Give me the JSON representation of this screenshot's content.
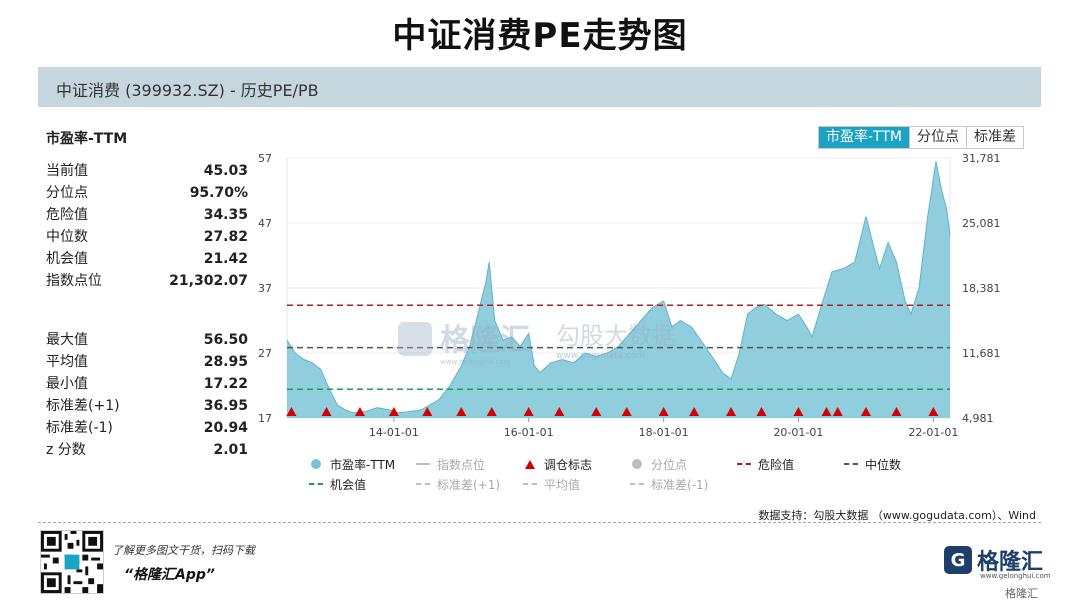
{
  "page_title": "中证消费PE走势图",
  "header": {
    "subtitle": "中证消费 (399932.SZ) - 历史PE/PB"
  },
  "stats": {
    "title": "市盈率-TTM",
    "group1": [
      {
        "label": "当前值",
        "value": "45.03"
      },
      {
        "label": "分位点",
        "value": "95.70%"
      },
      {
        "label": "危险值",
        "value": "34.35"
      },
      {
        "label": "中位数",
        "value": "27.82"
      },
      {
        "label": "机会值",
        "value": "21.42"
      },
      {
        "label": "指数点位",
        "value": "21,302.07"
      }
    ],
    "group2": [
      {
        "label": "最大值",
        "value": "56.50"
      },
      {
        "label": "平均值",
        "value": "28.95"
      },
      {
        "label": "最小值",
        "value": "17.22"
      },
      {
        "label": "标准差(+1)",
        "value": "36.95"
      },
      {
        "label": "标准差(-1)",
        "value": "20.94"
      },
      {
        "label": "z 分数",
        "value": "2.01"
      }
    ]
  },
  "tabs": [
    "市盈率-TTM",
    "分位点",
    "标准差"
  ],
  "active_tab": 0,
  "legend": [
    [
      {
        "label": "市盈率-TTM",
        "sym": "dot",
        "color": "#74c3d6",
        "muted": false
      },
      {
        "label": "指数点位",
        "sym": "line",
        "color": "#c0c0c0",
        "muted": true
      },
      {
        "label": "调仓标志",
        "sym": "tri",
        "color": "#d40000",
        "muted": false
      },
      {
        "label": "分位点",
        "sym": "dot",
        "color": "#bdbdbd",
        "muted": true
      },
      {
        "label": "危险值",
        "sym": "dash",
        "color": "#b22222",
        "muted": false
      },
      {
        "label": "中位数",
        "sym": "dash",
        "color": "#555555",
        "muted": false
      }
    ],
    [
      {
        "label": "机会值",
        "sym": "dash",
        "color": "#1e9e4a",
        "muted": false
      },
      {
        "label": "标准差(+1)",
        "sym": "dash",
        "color": "#c0c0c0",
        "muted": true
      },
      {
        "label": "平均值",
        "sym": "dash",
        "color": "#c0c0c0",
        "muted": true
      },
      {
        "label": "标准差(-1)",
        "sym": "dash",
        "color": "#c0c0c0",
        "muted": true
      }
    ]
  ],
  "watermark": {
    "brand": "格隆汇",
    "sub": "www.gelonghui.com",
    "partner": "勾股大数据",
    "partner_sub": "www.gogudata.com"
  },
  "source_text": "数据支持：勾股大数据 （www.gogudata.com）、Wind",
  "footer": {
    "line1": "了解更多图文干货，扫码下载",
    "line2": "“格隆汇App”",
    "brand": "格隆汇",
    "brand_sub": "www.gelonghui.com",
    "corner": "格隆汇"
  },
  "colors": {
    "area": "#7cc6d8",
    "danger": "#b22222",
    "median": "#555555",
    "opportunity": "#1e9e4a",
    "accent": "#1ba3c6",
    "marker": "#d40000"
  },
  "chart_data": {
    "type": "area",
    "x_range": [
      "2012-06-01",
      "2022-04-01"
    ],
    "x_ticks": [
      "14-01-01",
      "16-01-01",
      "18-01-01",
      "20-01-01",
      "22-01-01"
    ],
    "y_left": {
      "ticks": [
        17,
        27,
        37,
        47,
        57
      ],
      "range": [
        17,
        57
      ]
    },
    "y_right": {
      "ticks": [
        "4,981",
        "11,681",
        "18,381",
        "25,081",
        "31,781"
      ],
      "range": [
        4981,
        31781
      ]
    },
    "series": [
      {
        "name": "市盈率-TTM",
        "points": [
          [
            "2012-06-01",
            29.0
          ],
          [
            "2012-07-15",
            27.0
          ],
          [
            "2012-09-01",
            26.0
          ],
          [
            "2012-10-15",
            25.5
          ],
          [
            "2012-12-01",
            24.5
          ],
          [
            "2013-01-15",
            21.5
          ],
          [
            "2013-03-01",
            19.0
          ],
          [
            "2013-04-15",
            18.2
          ],
          [
            "2013-06-01",
            17.8
          ],
          [
            "2013-08-01",
            18.0
          ],
          [
            "2013-10-01",
            18.6
          ],
          [
            "2013-12-01",
            18.3
          ],
          [
            "2014-02-01",
            17.8
          ],
          [
            "2014-04-01",
            18.0
          ],
          [
            "2014-06-01",
            18.3
          ],
          [
            "2014-09-01",
            19.8
          ],
          [
            "2014-11-01",
            22.0
          ],
          [
            "2015-01-01",
            25.0
          ],
          [
            "2015-02-15",
            28.0
          ],
          [
            "2015-04-01",
            33.0
          ],
          [
            "2015-05-15",
            38.0
          ],
          [
            "2015-06-01",
            41.0
          ],
          [
            "2015-07-01",
            32.0
          ],
          [
            "2015-08-15",
            29.0
          ],
          [
            "2015-10-01",
            29.5
          ],
          [
            "2015-11-15",
            28.0
          ],
          [
            "2016-01-01",
            30.0
          ],
          [
            "2016-02-01",
            25.0
          ],
          [
            "2016-03-01",
            24.0
          ],
          [
            "2016-05-01",
            25.5
          ],
          [
            "2016-07-01",
            26.0
          ],
          [
            "2016-09-01",
            25.5
          ],
          [
            "2016-11-01",
            27.0
          ],
          [
            "2017-01-01",
            26.5
          ],
          [
            "2017-03-01",
            27.0
          ],
          [
            "2017-05-01",
            28.0
          ],
          [
            "2017-07-01",
            30.0
          ],
          [
            "2017-09-01",
            32.0
          ],
          [
            "2017-11-01",
            34.0
          ],
          [
            "2018-01-01",
            35.0
          ],
          [
            "2018-02-15",
            31.0
          ],
          [
            "2018-04-01",
            32.0
          ],
          [
            "2018-06-01",
            31.0
          ],
          [
            "2018-08-01",
            28.5
          ],
          [
            "2018-10-01",
            26.0
          ],
          [
            "2018-11-15",
            24.0
          ],
          [
            "2019-01-01",
            23.0
          ],
          [
            "2019-02-15",
            27.0
          ],
          [
            "2019-04-01",
            33.0
          ],
          [
            "2019-05-15",
            34.0
          ],
          [
            "2019-07-01",
            34.5
          ],
          [
            "2019-09-01",
            33.0
          ],
          [
            "2019-11-01",
            32.0
          ],
          [
            "2020-01-01",
            33.0
          ],
          [
            "2020-02-15",
            31.0
          ],
          [
            "2020-03-15",
            29.5
          ],
          [
            "2020-05-01",
            34.0
          ],
          [
            "2020-07-01",
            39.5
          ],
          [
            "2020-09-01",
            40.0
          ],
          [
            "2020-11-01",
            41.0
          ],
          [
            "2021-01-01",
            48.0
          ],
          [
            "2021-02-15",
            43.0
          ],
          [
            "2021-03-15",
            40.0
          ],
          [
            "2021-05-01",
            44.0
          ],
          [
            "2021-06-15",
            41.0
          ],
          [
            "2021-08-01",
            35.0
          ],
          [
            "2021-09-01",
            33.0
          ],
          [
            "2021-10-15",
            37.0
          ],
          [
            "2021-12-01",
            48.0
          ],
          [
            "2022-01-15",
            56.5
          ],
          [
            "2022-02-15",
            52.0
          ],
          [
            "2022-03-15",
            49.0
          ],
          [
            "2022-04-01",
            45.03
          ]
        ]
      }
    ],
    "reference_lines": [
      {
        "name": "危险值",
        "value": 34.35
      },
      {
        "name": "中位数",
        "value": 27.82
      },
      {
        "name": "机会值",
        "value": 21.42
      }
    ],
    "rebalance_markers": [
      "2012-06-25",
      "2013-01-01",
      "2013-07-01",
      "2014-01-01",
      "2014-07-01",
      "2015-01-01",
      "2015-06-15",
      "2016-01-01",
      "2016-06-15",
      "2017-01-01",
      "2017-06-15",
      "2018-01-01",
      "2018-06-15",
      "2019-01-01",
      "2019-06-15",
      "2020-01-01",
      "2020-06-01",
      "2020-08-01",
      "2021-01-01",
      "2021-06-15",
      "2022-01-01"
    ]
  }
}
